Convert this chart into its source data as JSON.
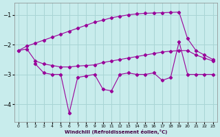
{
  "xlabel": "Windchill (Refroidissement éolien,°C)",
  "background_color": "#c8ecec",
  "grid_color": "#a8d4d4",
  "line_color": "#990099",
  "ylim": [
    -4.6,
    -0.6
  ],
  "xlim": [
    -0.5,
    23.5
  ],
  "yticks": [
    -4,
    -3,
    -2,
    -1
  ],
  "xticks": [
    0,
    1,
    2,
    3,
    4,
    5,
    6,
    7,
    8,
    9,
    10,
    11,
    12,
    13,
    14,
    15,
    16,
    17,
    18,
    19,
    20,
    21,
    22,
    23
  ],
  "line1_x": [
    0,
    1,
    2,
    3,
    4,
    5,
    6,
    7,
    8,
    9,
    10,
    11,
    12,
    13,
    14,
    15,
    16,
    17,
    18,
    19,
    20,
    21,
    22,
    23
  ],
  "line1_y": [
    -2.2,
    -2.05,
    -1.95,
    -1.85,
    -1.75,
    -1.65,
    -1.55,
    -1.45,
    -1.35,
    -1.25,
    -1.18,
    -1.1,
    -1.05,
    -1.0,
    -0.97,
    -0.95,
    -0.94,
    -0.93,
    -0.92,
    -0.91,
    -1.8,
    -2.2,
    -2.35,
    -2.5
  ],
  "line2_x": [
    0,
    1,
    2,
    3,
    4,
    5,
    6,
    7,
    8,
    9,
    10,
    11,
    12,
    13,
    14,
    15,
    16,
    17,
    18,
    19,
    20,
    21,
    22,
    23
  ],
  "line2_y": [
    -2.2,
    -2.15,
    -2.55,
    -2.65,
    -2.7,
    -2.75,
    -2.75,
    -2.72,
    -2.7,
    -2.68,
    -2.6,
    -2.55,
    -2.5,
    -2.45,
    -2.4,
    -2.35,
    -2.3,
    -2.25,
    -2.22,
    -2.2,
    -2.2,
    -2.35,
    -2.45,
    -2.55
  ],
  "line3_x": [
    2,
    3,
    4,
    5,
    6,
    7,
    8,
    9,
    10,
    11,
    12,
    13,
    14,
    15,
    16,
    17,
    18,
    19,
    20,
    21,
    22,
    23
  ],
  "line3_y": [
    -2.65,
    -2.95,
    -3.0,
    -3.0,
    -4.3,
    -3.1,
    -3.05,
    -3.0,
    -3.5,
    -3.55,
    -3.0,
    -2.95,
    -3.0,
    -3.0,
    -2.95,
    -3.2,
    -3.1,
    -1.9,
    -3.0,
    -3.0,
    -3.0,
    -3.0
  ]
}
